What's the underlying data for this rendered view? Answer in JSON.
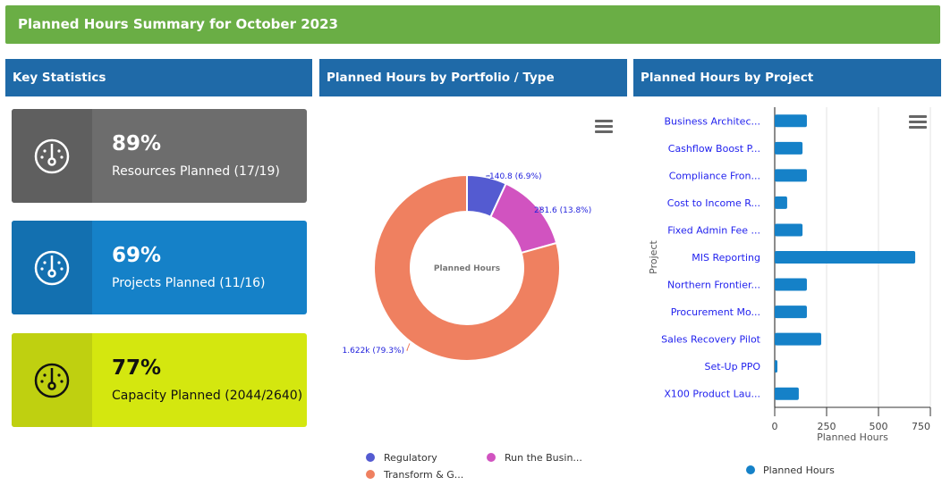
{
  "header": {
    "title": "Planned Hours Summary for October 2023"
  },
  "panels": {
    "stats": "Key Statistics",
    "portfolio": "Planned Hours by Portfolio / Type",
    "project": "Planned Hours by Project"
  },
  "stats": [
    {
      "percent": "89%",
      "label": "Resources Planned (17/19)",
      "color": "#6d6d6d",
      "icon": "gauge-icon"
    },
    {
      "percent": "69%",
      "label": "Projects Planned (11/16)",
      "color": "#1581c8",
      "icon": "gauge-icon"
    },
    {
      "percent": "77%",
      "label": "Capacity Planned (2044/2640)",
      "color": "#d4e70f",
      "icon": "gauge-icon"
    }
  ],
  "chart_data": [
    {
      "type": "pie",
      "subtype": "donut",
      "center_label": "Planned Hours",
      "slices": [
        {
          "name": "Regulatory",
          "value": 140.8,
          "label": "140.8 (6.9%)",
          "color": "#545bd1"
        },
        {
          "name": "Run the Busin...",
          "value": 281.6,
          "label": "281.6 (13.8%)",
          "color": "#d153c0"
        },
        {
          "name": "Transform & G...",
          "value": 1622,
          "label": "1.622k (79.3%)",
          "color": "#ef8060"
        }
      ],
      "legend": "bottom"
    },
    {
      "type": "bar",
      "orientation": "horizontal",
      "xlabel": "Planned Hours",
      "ylabel": "Project",
      "xlim": [
        0,
        750
      ],
      "xticks": [
        "0",
        "250",
        "500",
        "750"
      ],
      "grid": true,
      "legend": "bottom",
      "color": "#1581c8",
      "series": [
        {
          "name": "Planned Hours",
          "values": [
            155,
            134,
            155,
            60,
            134,
            677,
            155,
            155,
            224,
            13,
            116
          ]
        }
      ],
      "categories": [
        "Business Architec...",
        "Cashflow Boost P...",
        "Compliance Fron...",
        "Cost to Income R...",
        "Fixed Admin Fee ...",
        "MIS Reporting",
        "Northern Frontier...",
        "Procurement Mo...",
        "Sales Recovery Pilot",
        "Set-Up PPO",
        "X100 Product Lau..."
      ]
    }
  ]
}
